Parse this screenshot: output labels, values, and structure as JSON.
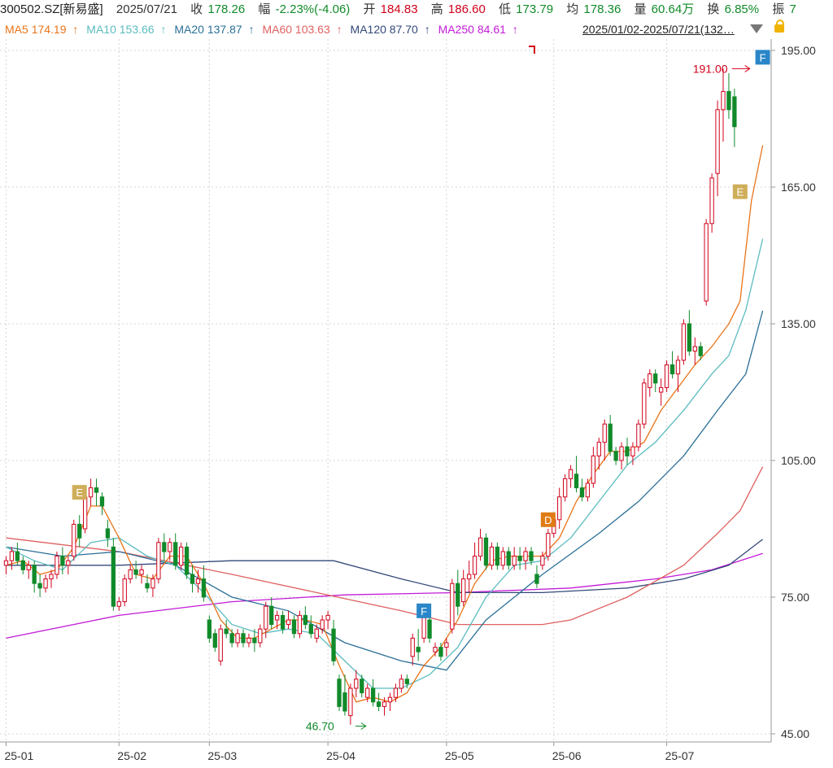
{
  "header": {
    "symbol": "300502.SZ[新易盛]",
    "date": "2025/07/21",
    "close_label": "收",
    "close_value": "178.26",
    "change_label": "幅",
    "change_value": "-2.23%(-4.06)",
    "open_label": "开",
    "open_value": "184.83",
    "high_label": "高",
    "high_value": "186.60",
    "low_label": "低",
    "low_value": "173.79",
    "avg_label": "均",
    "avg_value": "178.36",
    "volume_label": "量",
    "volume_value": "60.64万",
    "turnover_label": "换",
    "turnover_value": "6.85%",
    "amplitude_label": "振",
    "amplitude_value": "7"
  },
  "ma_legend": [
    {
      "label": "MA5",
      "value": "174.19",
      "arrow": "↑",
      "color": "#e8741a"
    },
    {
      "label": "MA10",
      "value": "153.66",
      "arrow": "↑",
      "color": "#5bbcc0"
    },
    {
      "label": "MA20",
      "value": "137.87",
      "arrow": "↑",
      "color": "#2a6f97"
    },
    {
      "label": "MA60",
      "value": "103.63",
      "arrow": "↑",
      "color": "#e06060"
    },
    {
      "label": "MA120",
      "value": "87.70",
      "arrow": "↑",
      "color": "#33497a"
    },
    {
      "label": "MA250",
      "value": "84.61",
      "arrow": "↑",
      "color": "#c21ad6"
    }
  ],
  "range_label": "2025/01/02-2025/07/21(132…",
  "chart_data": {
    "type": "candlestick",
    "ylim": [
      45,
      195
    ],
    "y_ticks": [
      "195.00",
      "165.00",
      "135.00",
      "105.00",
      "75.00",
      "45.00"
    ],
    "x_ticks": [
      {
        "label": "25-01",
        "index": 0
      },
      {
        "label": "25-02",
        "index": 20
      },
      {
        "label": "25-03",
        "index": 36
      },
      {
        "label": "25-04",
        "index": 57
      },
      {
        "label": "25-05",
        "index": 78
      },
      {
        "label": "25-06",
        "index": 97
      },
      {
        "label": "25-07",
        "index": 117
      }
    ],
    "total_slots": 136,
    "candles": [
      [
        82,
        84,
        80,
        83
      ],
      [
        83,
        86,
        81,
        85
      ],
      [
        85,
        87,
        82,
        83
      ],
      [
        83,
        84,
        80,
        81
      ],
      [
        81,
        83,
        79,
        82
      ],
      [
        82,
        83,
        76,
        78
      ],
      [
        78,
        80,
        75,
        77
      ],
      [
        77,
        80,
        76,
        79
      ],
      [
        79,
        81,
        77,
        80
      ],
      [
        80,
        85,
        79,
        84
      ],
      [
        84,
        86,
        80,
        82
      ],
      [
        82,
        84,
        80,
        83
      ],
      [
        84,
        92,
        83,
        91
      ],
      [
        91,
        93,
        86,
        88
      ],
      [
        90,
        98,
        89,
        97
      ],
      [
        97,
        101,
        95,
        99
      ],
      [
        99,
        101,
        95,
        98
      ],
      [
        97,
        98,
        93,
        95
      ],
      [
        90,
        92,
        86,
        88
      ],
      [
        86,
        88,
        72,
        73
      ],
      [
        73,
        75,
        72,
        74
      ],
      [
        74,
        80,
        73,
        79
      ],
      [
        79,
        82,
        78,
        81
      ],
      [
        81,
        83,
        79,
        80
      ],
      [
        80,
        82,
        78,
        81
      ],
      [
        78,
        80,
        76,
        77
      ],
      [
        77,
        80,
        75,
        79
      ],
      [
        79,
        88,
        78,
        87
      ],
      [
        87,
        89,
        83,
        85
      ],
      [
        85,
        88,
        83,
        87
      ],
      [
        87,
        89,
        81,
        82
      ],
      [
        82,
        87,
        81,
        86
      ],
      [
        86,
        87,
        79,
        80
      ],
      [
        80,
        82,
        76,
        78
      ],
      [
        78,
        81,
        76,
        79
      ],
      [
        79,
        82,
        74,
        75
      ],
      [
        70,
        71,
        65,
        66
      ],
      [
        67,
        68,
        63,
        64
      ],
      [
        61,
        69,
        60,
        68
      ],
      [
        68,
        70,
        66,
        67
      ],
      [
        67,
        68,
        64,
        65
      ],
      [
        65,
        68,
        64,
        67
      ],
      [
        67,
        68,
        64,
        65
      ],
      [
        65,
        67,
        64,
        66
      ],
      [
        66,
        68,
        63,
        65
      ],
      [
        65,
        69,
        64,
        68
      ],
      [
        68,
        74,
        66,
        73
      ],
      [
        73,
        75,
        68,
        69
      ],
      [
        70,
        72,
        68,
        71
      ],
      [
        71,
        72,
        67,
        68
      ],
      [
        69,
        72,
        68,
        70
      ],
      [
        70,
        71,
        66,
        67
      ],
      [
        67,
        72,
        66,
        71
      ],
      [
        71,
        73,
        68,
        69
      ],
      [
        69,
        71,
        66,
        67
      ],
      [
        66,
        69,
        65,
        68
      ],
      [
        68,
        71,
        67,
        70
      ],
      [
        70,
        72,
        68,
        71
      ],
      [
        68,
        70,
        60,
        61
      ],
      [
        57,
        58,
        50,
        51
      ],
      [
        54,
        58,
        49,
        50
      ],
      [
        49,
        56,
        47,
        55
      ],
      [
        55,
        59,
        53,
        57
      ],
      [
        57,
        58,
        53,
        54
      ],
      [
        53,
        56,
        52,
        55
      ],
      [
        55,
        57,
        51,
        52
      ],
      [
        52,
        54,
        50,
        51
      ],
      [
        51,
        53,
        49,
        52
      ],
      [
        52,
        54,
        50,
        53
      ],
      [
        53,
        56,
        52,
        55
      ],
      [
        55,
        58,
        54,
        57
      ],
      [
        57,
        58,
        55,
        56
      ],
      [
        62,
        67,
        60,
        66
      ],
      [
        64,
        68,
        61,
        63
      ],
      [
        66,
        72,
        65,
        71
      ],
      [
        70,
        71,
        65,
        66
      ],
      [
        63,
        65,
        62,
        64
      ],
      [
        64,
        65,
        61,
        62
      ],
      [
        64,
        66,
        62,
        65
      ],
      [
        68,
        79,
        67,
        78
      ],
      [
        78,
        81,
        71,
        73
      ],
      [
        74,
        81,
        73,
        79
      ],
      [
        79,
        83,
        76,
        80
      ],
      [
        80,
        87,
        79,
        84
      ],
      [
        84,
        90,
        83,
        88
      ],
      [
        88,
        89,
        81,
        82
      ],
      [
        82,
        87,
        81,
        86
      ],
      [
        86,
        87,
        81,
        82
      ],
      [
        82,
        86,
        81,
        85
      ],
      [
        85,
        86,
        81,
        82
      ],
      [
        82,
        86,
        81,
        84
      ],
      [
        84,
        86,
        81,
        83
      ],
      [
        83,
        86,
        81,
        85
      ],
      [
        85,
        86,
        82,
        83
      ],
      [
        80,
        82,
        77,
        78
      ],
      [
        82,
        85,
        81,
        84
      ],
      [
        84,
        90,
        83,
        89
      ],
      [
        89,
        93,
        88,
        92
      ],
      [
        92,
        99,
        90,
        97
      ],
      [
        97,
        102,
        96,
        101
      ],
      [
        101,
        104,
        99,
        103
      ],
      [
        102,
        106,
        98,
        99
      ],
      [
        99,
        101,
        96,
        97
      ],
      [
        97,
        101,
        96,
        100
      ],
      [
        100,
        108,
        99,
        106
      ],
      [
        106,
        110,
        103,
        109
      ],
      [
        109,
        114,
        105,
        113
      ],
      [
        113,
        115,
        106,
        107
      ],
      [
        107,
        108,
        104,
        105
      ],
      [
        105,
        109,
        103,
        108
      ],
      [
        108,
        110,
        104,
        106
      ],
      [
        106,
        109,
        104,
        108
      ],
      [
        108,
        114,
        107,
        113
      ],
      [
        113,
        123,
        112,
        122
      ],
      [
        121,
        125,
        119,
        124
      ],
      [
        124,
        125,
        120,
        122
      ],
      [
        120,
        123,
        117,
        121
      ],
      [
        121,
        127,
        120,
        126
      ],
      [
        126,
        129,
        123,
        124
      ],
      [
        124,
        128,
        120,
        127
      ],
      [
        127,
        136,
        126,
        135
      ],
      [
        135,
        138,
        128,
        129
      ],
      [
        129,
        132,
        126,
        130
      ],
      [
        130,
        131,
        127,
        128
      ],
      [
        140,
        158,
        139,
        157
      ],
      [
        157,
        168,
        155,
        167
      ],
      [
        168,
        184,
        163,
        182
      ],
      [
        182,
        191,
        175,
        186
      ],
      [
        186,
        190,
        180,
        182
      ],
      [
        184.83,
        186.6,
        173.79,
        178.26
      ]
    ],
    "up_color": "#d0021b",
    "down_color": "#118a2a",
    "ma_lines": [
      {
        "name": "MA5",
        "color": "#e8741a",
        "values": [
          [
            0,
            82
          ],
          [
            3,
            83
          ],
          [
            6,
            80
          ],
          [
            9,
            81
          ],
          [
            12,
            86
          ],
          [
            15,
            95
          ],
          [
            17,
            95
          ],
          [
            20,
            88
          ],
          [
            23,
            80
          ],
          [
            26,
            79
          ],
          [
            29,
            84
          ],
          [
            32,
            84
          ],
          [
            35,
            78
          ],
          [
            38,
            70
          ],
          [
            41,
            66
          ],
          [
            44,
            66
          ],
          [
            47,
            68
          ],
          [
            50,
            70
          ],
          [
            53,
            70
          ],
          [
            56,
            69
          ],
          [
            59,
            60
          ],
          [
            62,
            52
          ],
          [
            65,
            53
          ],
          [
            68,
            52
          ],
          [
            71,
            54
          ],
          [
            74,
            60
          ],
          [
            77,
            64
          ],
          [
            80,
            70
          ],
          [
            83,
            78
          ],
          [
            86,
            83
          ],
          [
            89,
            84
          ],
          [
            92,
            84
          ],
          [
            95,
            84
          ],
          [
            98,
            88
          ],
          [
            101,
            96
          ],
          [
            104,
            102
          ],
          [
            107,
            107
          ],
          [
            110,
            107
          ],
          [
            113,
            109
          ],
          [
            116,
            116
          ],
          [
            119,
            121
          ],
          [
            122,
            126
          ],
          [
            125,
            130
          ],
          [
            128,
            135
          ],
          [
            130,
            140
          ],
          [
            132,
            162
          ],
          [
            134,
            174.19
          ]
        ]
      },
      {
        "name": "MA10",
        "color": "#5bbcc0",
        "values": [
          [
            0,
            86
          ],
          [
            5,
            83
          ],
          [
            10,
            81
          ],
          [
            15,
            87
          ],
          [
            20,
            88
          ],
          [
            25,
            84
          ],
          [
            30,
            82
          ],
          [
            35,
            76
          ],
          [
            40,
            69
          ],
          [
            45,
            67
          ],
          [
            50,
            68
          ],
          [
            55,
            67
          ],
          [
            60,
            61
          ],
          [
            65,
            55
          ],
          [
            70,
            55
          ],
          [
            75,
            58
          ],
          [
            80,
            64
          ],
          [
            85,
            75
          ],
          [
            90,
            82
          ],
          [
            95,
            83
          ],
          [
            100,
            88
          ],
          [
            105,
            96
          ],
          [
            110,
            104
          ],
          [
            115,
            109
          ],
          [
            120,
            116
          ],
          [
            125,
            124
          ],
          [
            128,
            128
          ],
          [
            131,
            138
          ],
          [
            134,
            153.66
          ]
        ]
      },
      {
        "name": "MA20",
        "color": "#2a6f97",
        "values": [
          [
            0,
            86
          ],
          [
            10,
            84
          ],
          [
            20,
            85
          ],
          [
            30,
            82
          ],
          [
            40,
            75
          ],
          [
            50,
            72
          ],
          [
            60,
            65
          ],
          [
            70,
            61
          ],
          [
            78,
            59
          ],
          [
            85,
            70
          ],
          [
            95,
            80
          ],
          [
            105,
            89
          ],
          [
            112,
            96
          ],
          [
            120,
            106
          ],
          [
            126,
            116
          ],
          [
            131,
            124
          ],
          [
            134,
            137.87
          ]
        ]
      },
      {
        "name": "MA60",
        "color": "#e06060",
        "values": [
          [
            0,
            88
          ],
          [
            20,
            85
          ],
          [
            40,
            80
          ],
          [
            55,
            76
          ],
          [
            70,
            72
          ],
          [
            80,
            69
          ],
          [
            95,
            69
          ],
          [
            100,
            70
          ],
          [
            110,
            75
          ],
          [
            120,
            82
          ],
          [
            126,
            89
          ],
          [
            130,
            94
          ],
          [
            134,
            103.63
          ]
        ]
      },
      {
        "name": "MA120",
        "color": "#33497a",
        "values": [
          [
            0,
            82
          ],
          [
            20,
            82
          ],
          [
            40,
            83
          ],
          [
            58,
            83
          ],
          [
            70,
            79
          ],
          [
            80,
            76
          ],
          [
            95,
            76
          ],
          [
            110,
            77
          ],
          [
            120,
            79
          ],
          [
            128,
            82
          ],
          [
            134,
            87.7
          ]
        ]
      },
      {
        "name": "MA250",
        "color": "#c21ad6",
        "values": [
          [
            0,
            66
          ],
          [
            20,
            71
          ],
          [
            40,
            74
          ],
          [
            60,
            75.5
          ],
          [
            80,
            76
          ],
          [
            100,
            77
          ],
          [
            115,
            79
          ],
          [
            125,
            81
          ],
          [
            134,
            84.61
          ]
        ]
      }
    ],
    "annotations": {
      "high": {
        "label": "191.00",
        "index": 132,
        "value": 191
      },
      "low": {
        "label": "46.70",
        "index": 62,
        "value": 46.7
      },
      "markers": [
        {
          "letter": "E",
          "index": 13,
          "value": 98,
          "color": "#cfae5a"
        },
        {
          "letter": "F",
          "index": 74,
          "value": 72,
          "color": "#2a86c8"
        },
        {
          "letter": "D",
          "index": 96,
          "value": 92,
          "color": "#e07c16"
        },
        {
          "letter": "E",
          "index": 130,
          "value": 164,
          "color": "#cfae5a"
        },
        {
          "letter": "F",
          "index": 134,
          "value": 193.5,
          "color": "#2a86c8"
        }
      ]
    }
  }
}
